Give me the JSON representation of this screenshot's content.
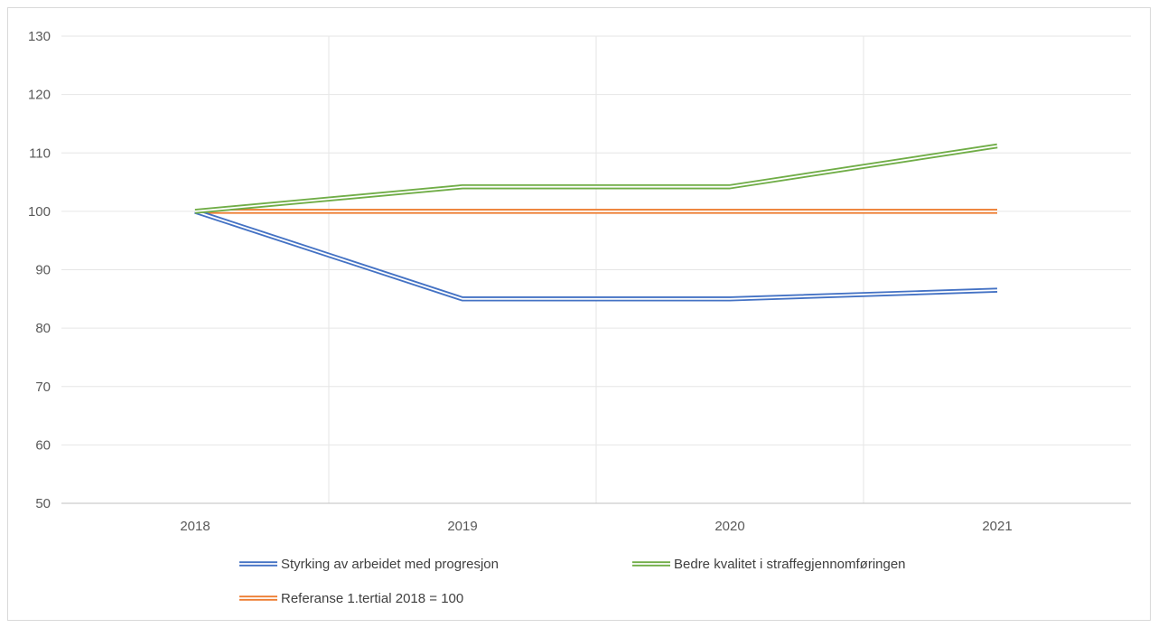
{
  "chart_data": {
    "type": "line",
    "categories": [
      "2018",
      "2019",
      "2020",
      "2021"
    ],
    "series": [
      {
        "name": "Styrking av arbeidet med progresjon",
        "values": [
          100,
          85,
          85,
          86.5
        ],
        "color": "#4472C4"
      },
      {
        "name": "Bedre kvalitet i straffegjennomføringen",
        "values": [
          100,
          104.2,
          104.2,
          111.2
        ],
        "color": "#70AD47"
      },
      {
        "name": "Referanse 1.tertial 2018 = 100",
        "values": [
          100,
          100,
          100,
          100
        ],
        "color": "#ED7D31"
      }
    ],
    "ylim": [
      50,
      130
    ],
    "yticks": [
      "50",
      "60",
      "70",
      "80",
      "90",
      "100",
      "110",
      "120",
      "130"
    ],
    "grid": true,
    "legend_position": "bottom",
    "line_style": "double"
  }
}
